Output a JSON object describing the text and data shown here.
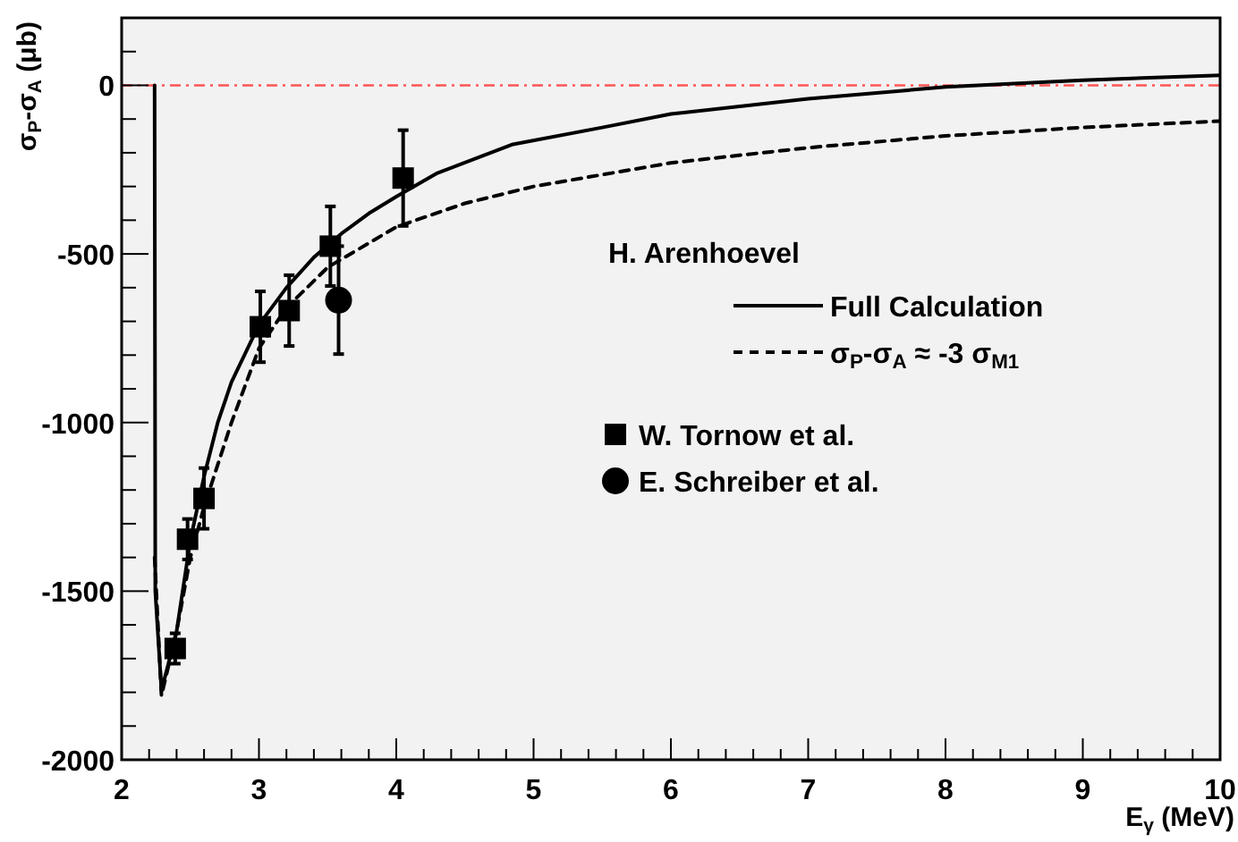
{
  "chart_data": {
    "type": "line",
    "xlabel": "E$_{γ}$ (MeV)",
    "ylabel": "σ$_{P}$-σ$_{A}$ (μb)",
    "legend_title": "H. Arenhoevel",
    "legend": "right",
    "grid": false,
    "xlim": [
      2,
      10
    ],
    "ylim": [
      -2000,
      200
    ],
    "xticks": [
      2,
      {
        "value": 2.2,
        "label": null
      },
      {
        "value": 2.4,
        "label": null
      },
      {
        "value": 2.6,
        "label": null
      },
      {
        "value": 2.8,
        "label": null
      },
      3,
      {
        "value": 3.2,
        "label": null
      },
      {
        "value": 3.4,
        "label": null
      },
      {
        "value": 3.6,
        "label": null
      },
      {
        "value": 3.8,
        "label": null
      },
      4,
      {
        "value": 4.2,
        "label": null
      },
      {
        "value": 4.4,
        "label": null
      },
      {
        "value": 4.6,
        "label": null
      },
      {
        "value": 4.8,
        "label": null
      },
      5,
      {
        "value": 5.2,
        "label": null
      },
      {
        "value": 5.4,
        "label": null
      },
      {
        "value": 5.6,
        "label": null
      },
      {
        "value": 5.8,
        "label": null
      },
      6,
      {
        "value": 6.2,
        "label": null
      },
      {
        "value": 6.4,
        "label": null
      },
      {
        "value": 6.6,
        "label": null
      },
      {
        "value": 6.8,
        "label": null
      },
      7,
      {
        "value": 7.2,
        "label": null
      },
      {
        "value": 7.4,
        "label": null
      },
      {
        "value": 7.6,
        "label": null
      },
      {
        "value": 7.8,
        "label": null
      },
      8,
      {
        "value": 8.2,
        "label": null
      },
      {
        "value": 8.4,
        "label": null
      },
      {
        "value": 8.6,
        "label": null
      },
      {
        "value": 8.8,
        "label": null
      },
      9,
      {
        "value": 9.2,
        "label": null
      },
      {
        "value": 9.4,
        "label": null
      },
      {
        "value": 9.6,
        "label": null
      },
      {
        "value": 9.8,
        "label": null
      },
      10
    ],
    "yticks": [
      -2000,
      {
        "value": -1900,
        "label": null
      },
      {
        "value": -1800,
        "label": null
      },
      {
        "value": -1700,
        "label": null
      },
      {
        "value": -1600,
        "label": null
      },
      -1500,
      {
        "value": -1400,
        "label": null
      },
      {
        "value": -1300,
        "label": null
      },
      {
        "value": -1200,
        "label": null
      },
      {
        "value": -1100,
        "label": null
      },
      -1000,
      {
        "value": -900,
        "label": null
      },
      {
        "value": -800,
        "label": null
      },
      {
        "value": -700,
        "label": null
      },
      {
        "value": -600,
        "label": null
      },
      -500,
      {
        "value": -400,
        "label": null
      },
      {
        "value": -300,
        "label": null
      },
      {
        "value": -200,
        "label": null
      },
      {
        "value": -100,
        "label": null
      },
      0,
      {
        "value": 100,
        "label": null
      },
      {
        "value": 200,
        "label": null
      }
    ],
    "ref_lines": [
      {
        "axis": "y",
        "value": 0,
        "color": "#ff5555",
        "line_style": "dashdot"
      }
    ],
    "series": [
      {
        "name": "Full Calculation",
        "color": "#000000",
        "line_style": "solid",
        "x": [
          2.24,
          2.245,
          2.29,
          2.4,
          2.5,
          2.6,
          2.7,
          2.8,
          3.0,
          3.2,
          3.4,
          3.6,
          3.8,
          4.0,
          4.3,
          4.85,
          5.5,
          6,
          7,
          8,
          8.5,
          9,
          10
        ],
        "values": [
          0,
          -1500,
          -1795,
          -1620,
          -1350,
          -1160,
          -1000,
          -880,
          -710,
          -600,
          -510,
          -440,
          -380,
          -330,
          -260,
          -175,
          -125,
          -85,
          -40,
          -5,
          5,
          15,
          30
        ]
      },
      {
        "name": "σ$_{P}$-σ$_{A}$ ≈ -3 σ$_{M1}$",
        "color": "#000000",
        "line_style": "dashed",
        "x": [
          2.24,
          2.29,
          2.4,
          2.5,
          2.6,
          2.8,
          3.0,
          3.2,
          3.5,
          4.0,
          4.5,
          5,
          6,
          7,
          8,
          9,
          10
        ],
        "values": [
          -1400,
          -1810,
          -1620,
          -1400,
          -1250,
          -1000,
          -780,
          -660,
          -540,
          -420,
          -350,
          -300,
          -230,
          -185,
          -150,
          -125,
          -106
        ]
      },
      {
        "name": "W. Tornow et al.",
        "type": "scatter",
        "color": "#000000",
        "marker": "square",
        "x": [
          2.39,
          2.48,
          2.6,
          3.01,
          3.22,
          3.52,
          4.05
        ],
        "values": [
          -1670,
          -1346,
          -1225,
          -716,
          -668,
          -477,
          -275
        ],
        "errors": [
          45,
          60,
          90,
          105,
          105,
          118,
          142
        ]
      },
      {
        "name": "E. Schreiber et al.",
        "type": "scatter",
        "color": "#000000",
        "marker": "circle",
        "x": [
          3.58
        ],
        "values": [
          -637
        ],
        "errors": [
          160
        ]
      }
    ]
  }
}
